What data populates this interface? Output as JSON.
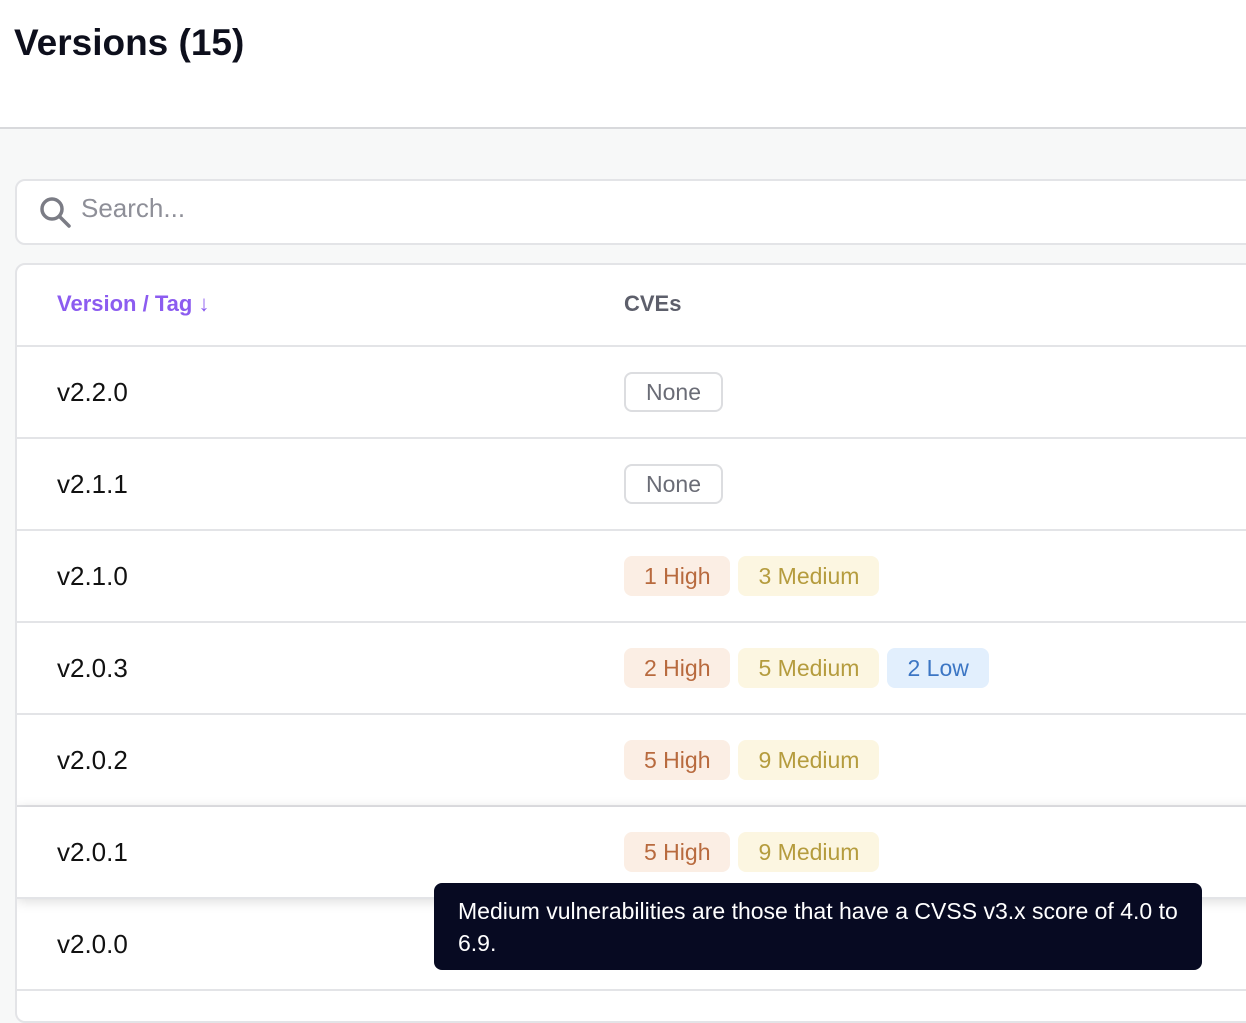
{
  "page": {
    "title": "Versions (15)"
  },
  "search": {
    "placeholder": "Search..."
  },
  "table": {
    "headers": {
      "version": "Version / Tag",
      "cves": "CVEs"
    },
    "rows": [
      {
        "version": "v2.2.0",
        "badges": [
          {
            "label": "None",
            "severity": "none"
          }
        ]
      },
      {
        "version": "v2.1.1",
        "badges": [
          {
            "label": "None",
            "severity": "none"
          }
        ]
      },
      {
        "version": "v2.1.0",
        "badges": [
          {
            "label": "1 High",
            "severity": "high"
          },
          {
            "label": "3 Medium",
            "severity": "medium"
          }
        ]
      },
      {
        "version": "v2.0.3",
        "badges": [
          {
            "label": "2 High",
            "severity": "high"
          },
          {
            "label": "5 Medium",
            "severity": "medium"
          },
          {
            "label": "2 Low",
            "severity": "low"
          }
        ]
      },
      {
        "version": "v2.0.2",
        "badges": [
          {
            "label": "5 High",
            "severity": "high"
          },
          {
            "label": "9 Medium",
            "severity": "medium"
          }
        ]
      },
      {
        "version": "v2.0.1",
        "badges": [
          {
            "label": "5 High",
            "severity": "high"
          },
          {
            "label": "9 Medium",
            "severity": "medium"
          }
        ],
        "hovered": true
      },
      {
        "version": "v2.0.0",
        "badges": []
      }
    ]
  },
  "tooltip": {
    "text": "Medium vulnerabilities are those that have a CVSS v3.x score of 4.0 to 6.9."
  },
  "colors": {
    "accent": "#8c5cf0",
    "high": "#b86a3e",
    "medium": "#b59c3e",
    "low": "#3c76c4"
  }
}
